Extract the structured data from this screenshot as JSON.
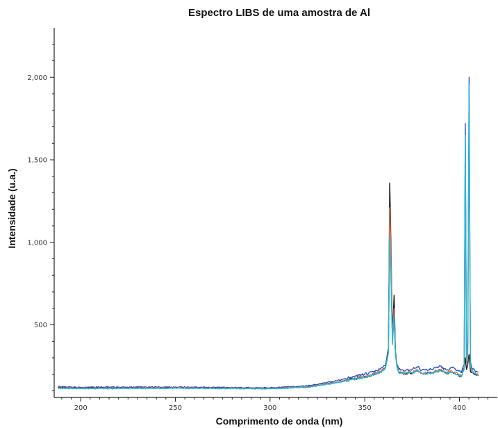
{
  "chart_data": {
    "type": "line",
    "title": "Espectro LIBS de uma amostra de Al",
    "xlabel": "Comprimento de onda (nm)",
    "ylabel": "Intensidade (u.a.)",
    "xlim": [
      186,
      420
    ],
    "ylim": [
      60,
      2300
    ],
    "grid": false,
    "legend": "none",
    "x_ticks": [
      200,
      250,
      300,
      350,
      400
    ],
    "y_ticks": [
      500,
      1000,
      1500,
      2000
    ],
    "x_tick_labels": [
      "200",
      "250",
      "300",
      "350",
      "400"
    ],
    "y_tick_labels": [
      "500",
      "1,000",
      "1,500",
      "2,000"
    ],
    "series": [
      {
        "color": "#1a1a1a",
        "x": [
          188,
          200,
          250,
          300,
          320,
          335,
          345,
          352,
          358,
          361,
          362.5,
          363.2,
          363.9,
          364.6,
          365.5,
          366.2,
          367,
          368,
          371,
          375,
          378,
          380,
          385,
          390,
          393,
          396,
          399,
          401,
          402.5,
          403.1,
          403.7,
          404.4,
          405.1,
          405.8,
          406.5,
          407.3,
          408,
          410
        ],
        "y": [
          120,
          118,
          120,
          115,
          125,
          150,
          175,
          190,
          215,
          240,
          350,
          1360,
          960,
          430,
          680,
          340,
          250,
          215,
          205,
          210,
          225,
          205,
          210,
          225,
          205,
          215,
          200,
          185,
          240,
          300,
          230,
          260,
          320,
          220,
          210,
          210,
          200,
          190
        ]
      },
      {
        "color": "#2e4fb8",
        "x": [
          188,
          200,
          250,
          300,
          320,
          335,
          345,
          352,
          358,
          361,
          362.5,
          363.2,
          363.9,
          364.6,
          365.5,
          366.2,
          367,
          368,
          371,
          375,
          378,
          380,
          385,
          390,
          393,
          396,
          399,
          401,
          402.5,
          403.1,
          403.7,
          404.4,
          405.1,
          405.8,
          406.5,
          407.3,
          408,
          410
        ],
        "y": [
          125,
          122,
          123,
          118,
          130,
          160,
          190,
          205,
          230,
          260,
          360,
          1100,
          780,
          420,
          520,
          330,
          260,
          230,
          220,
          230,
          245,
          225,
          230,
          250,
          225,
          240,
          225,
          210,
          260,
          1720,
          300,
          400,
          2000,
          280,
          240,
          235,
          225,
          215
        ]
      },
      {
        "color": "#e07a50",
        "x": [
          188,
          200,
          250,
          300,
          320,
          335,
          345,
          352,
          358,
          361,
          362.5,
          363.2,
          363.9,
          364.6,
          365.5,
          366.2,
          367,
          368,
          371,
          375,
          378,
          380,
          385,
          390,
          393,
          396,
          399,
          401,
          402.5,
          403.1,
          403.7,
          404.4,
          405.1,
          405.8,
          406.5,
          407.3,
          408,
          410
        ],
        "y": [
          118,
          116,
          118,
          114,
          124,
          150,
          178,
          192,
          218,
          242,
          340,
          1210,
          900,
          400,
          600,
          320,
          250,
          215,
          208,
          212,
          228,
          208,
          212,
          228,
          208,
          218,
          205,
          190,
          235,
          1500,
          270,
          290,
          1800,
          250,
          215,
          212,
          205,
          195
        ]
      },
      {
        "color": "#22b8d8",
        "x": [
          188,
          200,
          250,
          300,
          320,
          335,
          345,
          352,
          358,
          361,
          362.5,
          363.2,
          363.9,
          364.6,
          365.5,
          366.2,
          367,
          368,
          371,
          375,
          378,
          380,
          385,
          390,
          393,
          396,
          399,
          401,
          402.5,
          403.1,
          403.7,
          404.4,
          405.1,
          405.8,
          406.5,
          407.3,
          408,
          410
        ],
        "y": [
          115,
          113,
          116,
          112,
          122,
          148,
          172,
          188,
          212,
          238,
          330,
          1030,
          760,
          380,
          560,
          310,
          245,
          210,
          205,
          208,
          222,
          204,
          208,
          222,
          204,
          214,
          200,
          185,
          230,
          1650,
          280,
          380,
          1960,
          260,
          225,
          215,
          205,
          192
        ]
      }
    ]
  }
}
